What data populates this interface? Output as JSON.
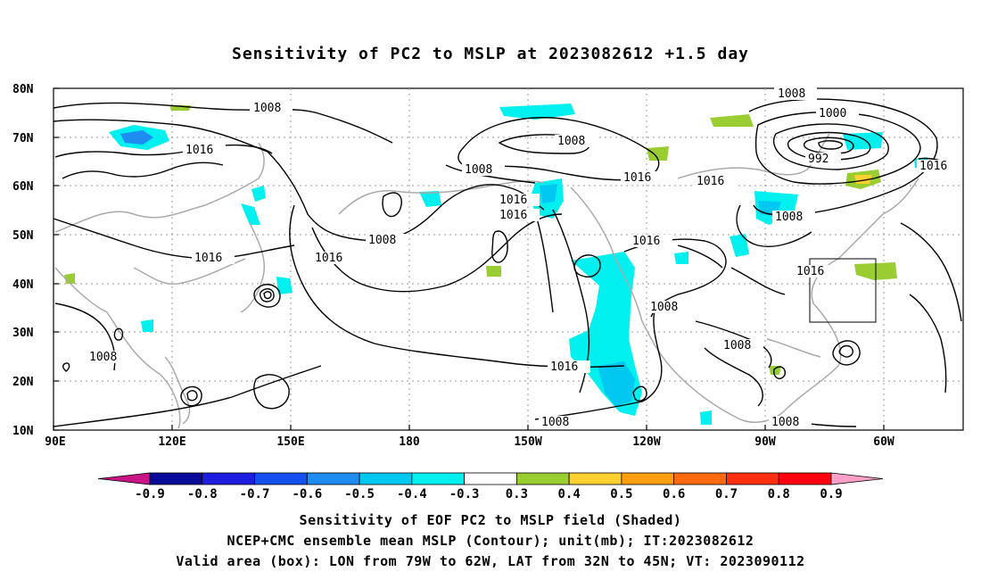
{
  "title": "Sensitivity of PC2 to MSLP at 2023082612 +1.5 day",
  "map": {
    "lat_labels": [
      "80N",
      "70N",
      "60N",
      "50N",
      "40N",
      "30N",
      "20N",
      "10N"
    ],
    "lon_labels": [
      "90E",
      "120E",
      "150E",
      "180",
      "150W",
      "120W",
      "90W",
      "60W"
    ],
    "contour_labels": [
      "1008",
      "1008",
      "1000",
      "992",
      "1016",
      "1016",
      "1008",
      "1008",
      "1016",
      "1016",
      "1016",
      "1016",
      "1008",
      "1008",
      "1016",
      "1016",
      "1016",
      "1008",
      "1008",
      "1008",
      "1008",
      "1016",
      "1008"
    ],
    "valid_box_color": "#000000"
  },
  "colorbar": {
    "labels": [
      "-0.9",
      "-0.8",
      "-0.7",
      "-0.6",
      "-0.5",
      "-0.4",
      "-0.3",
      "0.3",
      "0.4",
      "0.5",
      "0.6",
      "0.7",
      "0.8",
      "0.9"
    ],
    "colors": [
      "#c71585",
      "#0a0a9a",
      "#1e1ee0",
      "#1450f0",
      "#1e8cf0",
      "#00c8f0",
      "#00f0f0",
      "#ffffff",
      "#9acd32",
      "#ffd030",
      "#ff9e10",
      "#ff6a10",
      "#ff3010",
      "#ff0010",
      "#ffa0c8"
    ]
  },
  "captions": {
    "line1": "Sensitivity of EOF PC2 to MSLP field (Shaded)",
    "line2": "NCEP+CMC ensemble mean MSLP (Contour); unit(mb); IT:2023082612",
    "line3": "Valid area (box): LON from 79W to 62W, LAT from 32N to 45N; VT: 2023090112"
  }
}
